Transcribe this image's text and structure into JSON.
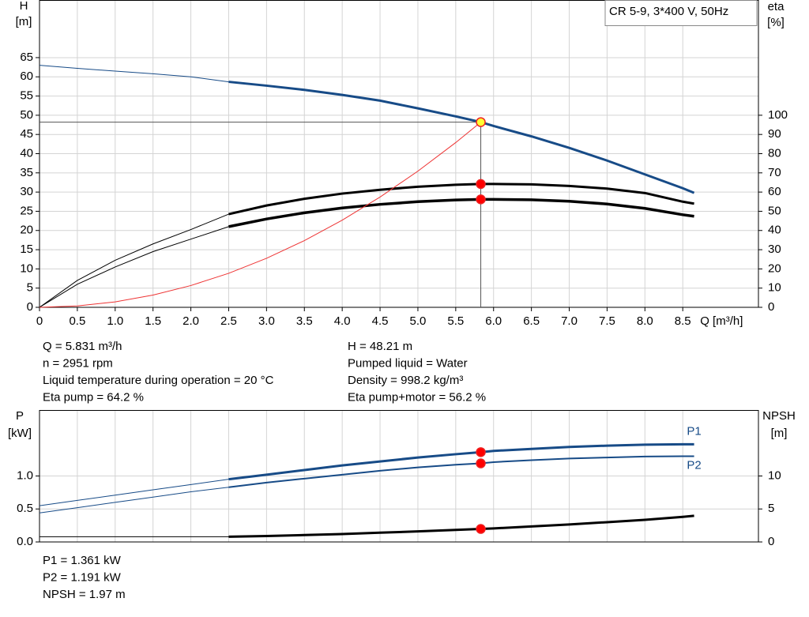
{
  "chart_data": [
    {
      "type": "line",
      "title": "CR 5-9, 3*400 V, 50Hz",
      "ylabel": [
        "H",
        "[m]"
      ],
      "y2label": [
        "eta",
        "[%]"
      ],
      "xlabel": "Q [m³/h]",
      "x": [
        0,
        0.5,
        1,
        1.5,
        2,
        2.5,
        3,
        3.5,
        4,
        4.5,
        5,
        5.5,
        5.831,
        6,
        6.5,
        7,
        7.5,
        8,
        8.5,
        8.65
      ],
      "xlim": [
        0,
        9.5
      ],
      "xticks": [
        0,
        0.5,
        {
          "value": 1,
          "label": "1.0"
        },
        1.5,
        {
          "value": 2,
          "label": "2.0"
        },
        2.5,
        {
          "value": 3,
          "label": "3.0"
        },
        3.5,
        {
          "value": 4,
          "label": "4.0"
        },
        4.5,
        {
          "value": 5,
          "label": "5.0"
        },
        5.5,
        {
          "value": 6,
          "label": "6.0"
        },
        6.5,
        {
          "value": 7,
          "label": "7.0"
        },
        7.5,
        {
          "value": 8,
          "label": "8.0"
        },
        8.5
      ],
      "ylim": [
        0,
        80
      ],
      "yticks": [
        0,
        5,
        10,
        15,
        20,
        25,
        30,
        35,
        40,
        45,
        50,
        55,
        60,
        65
      ],
      "y2lim": [
        0,
        160
      ],
      "y2ticks": [
        0,
        10,
        20,
        30,
        40,
        50,
        60,
        70,
        80,
        90,
        100
      ],
      "grid": true,
      "thick_from": 2.5,
      "operating_x": 5.831,
      "series": [
        {
          "color": "#174b87",
          "crosshair": true,
          "marker": "#ffff33",
          "values": [
            63,
            62.2,
            61.5,
            60.8,
            60,
            58.7,
            57.7,
            56.6,
            55.3,
            53.8,
            51.8,
            49.7,
            48.21,
            47.2,
            44.5,
            41.5,
            38.2,
            34.6,
            31,
            29.8
          ]
        },
        {
          "color": "#000000",
          "axis": "y2",
          "marker": "#ff0000",
          "values": [
            0,
            14,
            24.5,
            33,
            40.5,
            48.5,
            53,
            56.5,
            59.2,
            61.2,
            62.8,
            63.8,
            64.2,
            64.2,
            64,
            63.2,
            61.8,
            59.5,
            55,
            54
          ]
        },
        {
          "color": "#000000",
          "axis": "y2",
          "marker": "#ff0000",
          "heavy": true,
          "values": [
            0,
            12,
            21,
            29,
            35.5,
            42,
            46,
            49.2,
            51.7,
            53.6,
            55,
            55.9,
            56.2,
            56.2,
            56,
            55.2,
            53.8,
            51.5,
            48.2,
            47.4
          ]
        },
        {
          "color": "#ee3333",
          "thin": true,
          "values": [
            0,
            0.35,
            1.42,
            3.19,
            5.67,
            8.86,
            12.76,
            17.37,
            22.69,
            28.71,
            35.45,
            42.89,
            48.21,
            null,
            null,
            null,
            null,
            null,
            null,
            null
          ]
        }
      ],
      "readouts": [
        [
          "Q = 5.831 m³/h",
          "n = 2951 rpm",
          "Liquid temperature during operation = 20 °C",
          "Eta pump = 64.2 %"
        ],
        [
          "H = 48.21 m",
          "Pumped liquid = Water",
          "Density = 998.2 kg/m³",
          "Eta pump+motor = 56.2 %"
        ]
      ]
    },
    {
      "type": "line",
      "ylabel": [
        "P",
        "[kW]"
      ],
      "y2label": [
        "NPSH",
        "[m]"
      ],
      "x": [
        0,
        0.5,
        1,
        1.5,
        2,
        2.5,
        3,
        3.5,
        4,
        4.5,
        5,
        5.5,
        5.831,
        6,
        6.5,
        7,
        7.5,
        8,
        8.5,
        8.65
      ],
      "xlim": [
        0,
        9.5
      ],
      "ylim": [
        0,
        2
      ],
      "yticks": [
        {
          "value": 0,
          "label": "0.0"
        },
        0.5,
        {
          "value": 1,
          "label": "1.0"
        }
      ],
      "y2lim": [
        0,
        20
      ],
      "y2ticks": [
        0,
        5,
        10
      ],
      "grid": true,
      "thick_from": 2.5,
      "operating_x": 5.831,
      "series": [
        {
          "name": "P1",
          "name_position": "above",
          "color": "#174b87",
          "marker": "#ff0000",
          "values": [
            0.55,
            0.63,
            0.71,
            0.79,
            0.87,
            0.95,
            1.02,
            1.09,
            1.16,
            1.22,
            1.28,
            1.33,
            1.361,
            1.38,
            1.41,
            1.44,
            1.46,
            1.475,
            1.48,
            1.48
          ]
        },
        {
          "name": "P2",
          "name_position": "below",
          "color": "#174b87",
          "marker": "#ff0000",
          "light": true,
          "values": [
            0.44,
            0.52,
            0.6,
            0.68,
            0.76,
            0.83,
            0.9,
            0.96,
            1.02,
            1.08,
            1.13,
            1.17,
            1.191,
            1.21,
            1.24,
            1.265,
            1.28,
            1.295,
            1.3,
            1.3
          ]
        },
        {
          "color": "#000000",
          "axis": "y2",
          "marker": "#ff0000",
          "values": [
            0.8,
            0.8,
            0.8,
            0.8,
            0.8,
            0.8,
            0.9,
            1.05,
            1.2,
            1.4,
            1.6,
            1.82,
            1.97,
            2.05,
            2.35,
            2.65,
            3,
            3.35,
            3.8,
            3.97
          ]
        }
      ],
      "readouts": [
        [
          "P1 = 1.361 kW",
          "P2 = 1.191 kW",
          "NPSH = 1.97 m"
        ]
      ]
    }
  ]
}
